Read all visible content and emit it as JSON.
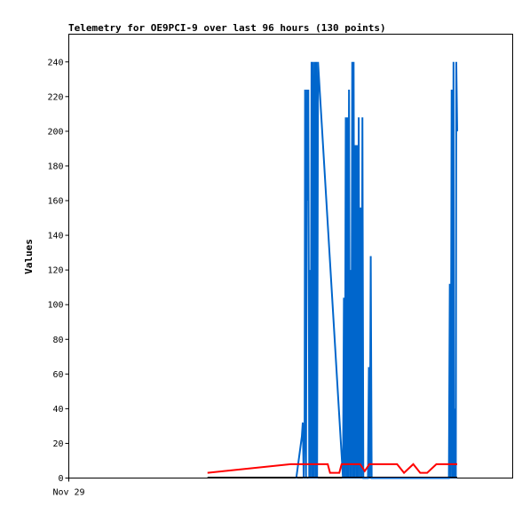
{
  "chart_data": {
    "type": "line",
    "title": "Telemetry for OE9PCI-9 over last 96 hours (130 points)",
    "xlabel": "",
    "ylabel": "Values",
    "x_tick_labels": [
      "Nov 29"
    ],
    "x_range": [
      0,
      96
    ],
    "ylim": [
      0,
      256
    ],
    "y_ticks": [
      0,
      20,
      40,
      60,
      80,
      100,
      120,
      140,
      160,
      180,
      200,
      220,
      240
    ],
    "grid": false,
    "legend": "none",
    "series": [
      {
        "color": "#0066cc",
        "x": [
          49.2,
          50.2,
          50.4,
          50.6,
          50.8,
          51.0,
          51.1,
          51.3,
          51.5,
          51.6,
          51.8,
          52.0,
          52.2,
          52.3,
          52.5,
          52.7,
          52.8,
          53.0,
          53.2,
          53.4,
          53.5,
          53.7,
          53.9,
          59.3,
          59.5,
          59.7,
          59.9,
          60.1,
          60.2,
          60.4,
          60.6,
          60.8,
          60.9,
          61.1,
          61.3,
          61.5,
          61.6,
          61.8,
          62.0,
          62.2,
          62.3,
          62.5,
          62.7,
          62.9,
          63.1,
          63.3,
          63.5,
          63.7,
          64.1,
          64.3,
          64.5,
          64.7,
          64.9,
          65.1,
          65.3,
          65.5,
          65.7,
          65.9,
          66.1,
          82.2,
          82.4,
          82.6,
          82.8,
          83.0,
          83.2,
          83.3,
          83.5,
          83.7,
          83.8,
          84.0
        ],
        "values": [
          0,
          20,
          24,
          32,
          0,
          32,
          224,
          0,
          224,
          160,
          224,
          0,
          120,
          0,
          240,
          0,
          240,
          0,
          240,
          0,
          240,
          0,
          240,
          0,
          104,
          0,
          208,
          0,
          208,
          0,
          224,
          0,
          120,
          0,
          240,
          0,
          240,
          0,
          192,
          0,
          192,
          0,
          208,
          0,
          156,
          0,
          208,
          0,
          0,
          0,
          0,
          0,
          64,
          0,
          128,
          0,
          0,
          0,
          0,
          0,
          112,
          0,
          224,
          0,
          240,
          0,
          40,
          0,
          240,
          200
        ]
      },
      {
        "color": "#ff0000",
        "x": [
          30.0,
          48.0,
          56.0,
          56.5,
          58.5,
          59.0,
          63.0,
          64.0,
          65.0,
          66.0,
          71.0,
          72.5,
          74.5,
          76.0,
          77.5,
          79.5,
          84.0
        ],
        "values": [
          3,
          8,
          8,
          3,
          3,
          8,
          8,
          4,
          8,
          8,
          8,
          3,
          8,
          3,
          3,
          8,
          8
        ]
      },
      {
        "color": "#000000",
        "x": [
          30.0,
          84.0
        ],
        "values": [
          0.5,
          0.5
        ]
      }
    ]
  }
}
